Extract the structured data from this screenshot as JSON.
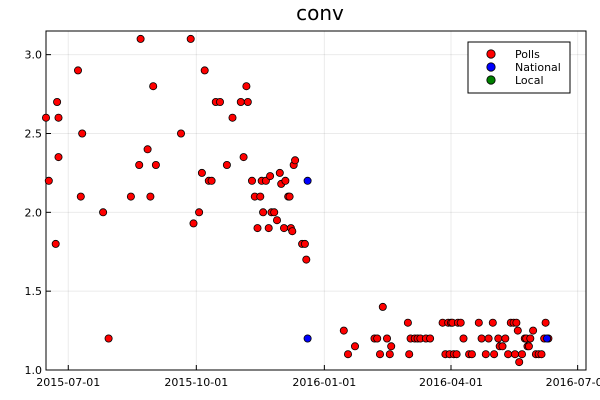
{
  "chart_data": {
    "type": "scatter",
    "title": "conv",
    "xlabel": "",
    "ylabel": "",
    "x_axis": {
      "kind": "date",
      "range": [
        "2015-06-15",
        "2016-07-07"
      ],
      "ticks": [
        "2015-07-01",
        "2015-10-01",
        "2016-01-01",
        "2016-04-01",
        "2016-07-01"
      ]
    },
    "y_axis": {
      "range": [
        1.0,
        3.15
      ],
      "ticks": [
        "1.0",
        "1.5",
        "2.0",
        "2.5",
        "3.0"
      ]
    },
    "grid": true,
    "legend": {
      "position": "top-right"
    },
    "series": [
      {
        "name": "Polls",
        "color": "#ff0000",
        "points": [
          [
            "2015-06-15",
            2.6
          ],
          [
            "2015-06-17",
            2.2
          ],
          [
            "2015-06-22",
            1.8
          ],
          [
            "2015-06-23",
            2.7
          ],
          [
            "2015-06-24",
            2.35
          ],
          [
            "2015-06-24",
            2.6
          ],
          [
            "2015-07-08",
            2.9
          ],
          [
            "2015-07-10",
            2.1
          ],
          [
            "2015-07-11",
            2.5
          ],
          [
            "2015-07-26",
            2.0
          ],
          [
            "2015-07-30",
            1.2
          ],
          [
            "2015-08-15",
            2.1
          ],
          [
            "2015-08-21",
            2.3
          ],
          [
            "2015-08-22",
            3.1
          ],
          [
            "2015-08-27",
            2.4
          ],
          [
            "2015-08-29",
            2.1
          ],
          [
            "2015-08-31",
            2.8
          ],
          [
            "2015-09-02",
            2.3
          ],
          [
            "2015-09-20",
            2.5
          ],
          [
            "2015-09-27",
            3.1
          ],
          [
            "2015-09-29",
            1.93
          ],
          [
            "2015-10-03",
            2.0
          ],
          [
            "2015-10-05",
            2.25
          ],
          [
            "2015-10-07",
            2.9
          ],
          [
            "2015-10-10",
            2.2
          ],
          [
            "2015-10-12",
            2.2
          ],
          [
            "2015-10-15",
            2.7
          ],
          [
            "2015-10-18",
            2.7
          ],
          [
            "2015-10-23",
            2.3
          ],
          [
            "2015-10-27",
            2.6
          ],
          [
            "2015-11-02",
            2.7
          ],
          [
            "2015-11-04",
            2.35
          ],
          [
            "2015-11-06",
            2.8
          ],
          [
            "2015-11-07",
            2.7
          ],
          [
            "2015-11-10",
            2.2
          ],
          [
            "2015-11-12",
            2.1
          ],
          [
            "2015-11-14",
            1.9
          ],
          [
            "2015-11-16",
            2.1
          ],
          [
            "2015-11-17",
            2.2
          ],
          [
            "2015-11-18",
            2.0
          ],
          [
            "2015-11-20",
            2.2
          ],
          [
            "2015-11-22",
            1.9
          ],
          [
            "2015-11-23",
            2.23
          ],
          [
            "2015-11-24",
            2.0
          ],
          [
            "2015-11-26",
            2.0
          ],
          [
            "2015-11-28",
            1.95
          ],
          [
            "2015-11-30",
            2.25
          ],
          [
            "2015-12-01",
            2.18
          ],
          [
            "2015-12-03",
            1.9
          ],
          [
            "2015-12-04",
            2.2
          ],
          [
            "2015-12-06",
            2.1
          ],
          [
            "2015-12-07",
            2.1
          ],
          [
            "2015-12-08",
            1.9
          ],
          [
            "2015-12-09",
            1.88
          ],
          [
            "2015-12-10",
            2.3
          ],
          [
            "2015-12-11",
            2.33
          ],
          [
            "2015-12-16",
            1.8
          ],
          [
            "2015-12-18",
            1.8
          ],
          [
            "2015-12-19",
            1.7
          ],
          [
            "2016-01-15",
            1.25
          ],
          [
            "2016-01-18",
            1.1
          ],
          [
            "2016-01-23",
            1.15
          ],
          [
            "2016-02-06",
            1.2
          ],
          [
            "2016-02-08",
            1.2
          ],
          [
            "2016-02-10",
            1.1
          ],
          [
            "2016-02-12",
            1.4
          ],
          [
            "2016-02-15",
            1.2
          ],
          [
            "2016-02-17",
            1.1
          ],
          [
            "2016-02-18",
            1.15
          ],
          [
            "2016-03-01",
            1.3
          ],
          [
            "2016-03-02",
            1.1
          ],
          [
            "2016-03-03",
            1.2
          ],
          [
            "2016-03-06",
            1.2
          ],
          [
            "2016-03-08",
            1.2
          ],
          [
            "2016-03-10",
            1.2
          ],
          [
            "2016-03-14",
            1.2
          ],
          [
            "2016-03-17",
            1.2
          ],
          [
            "2016-03-26",
            1.3
          ],
          [
            "2016-03-28",
            1.1
          ],
          [
            "2016-03-30",
            1.3
          ],
          [
            "2016-03-31",
            1.1
          ],
          [
            "2016-04-01",
            1.3
          ],
          [
            "2016-04-02",
            1.3
          ],
          [
            "2016-04-03",
            1.1
          ],
          [
            "2016-04-05",
            1.1
          ],
          [
            "2016-04-06",
            1.3
          ],
          [
            "2016-04-08",
            1.3
          ],
          [
            "2016-04-10",
            1.2
          ],
          [
            "2016-04-14",
            1.1
          ],
          [
            "2016-04-16",
            1.1
          ],
          [
            "2016-04-21",
            1.3
          ],
          [
            "2016-04-23",
            1.2
          ],
          [
            "2016-04-26",
            1.1
          ],
          [
            "2016-04-28",
            1.2
          ],
          [
            "2016-05-01",
            1.3
          ],
          [
            "2016-05-02",
            1.1
          ],
          [
            "2016-05-05",
            1.2
          ],
          [
            "2016-05-06",
            1.15
          ],
          [
            "2016-05-08",
            1.15
          ],
          [
            "2016-05-10",
            1.2
          ],
          [
            "2016-05-12",
            1.1
          ],
          [
            "2016-05-14",
            1.3
          ],
          [
            "2016-05-16",
            1.3
          ],
          [
            "2016-05-17",
            1.1
          ],
          [
            "2016-05-18",
            1.3
          ],
          [
            "2016-05-19",
            1.25
          ],
          [
            "2016-05-20",
            1.05
          ],
          [
            "2016-05-22",
            1.1
          ],
          [
            "2016-05-24",
            1.2
          ],
          [
            "2016-05-25",
            1.2
          ],
          [
            "2016-05-26",
            1.15
          ],
          [
            "2016-05-27",
            1.15
          ],
          [
            "2016-05-28",
            1.2
          ],
          [
            "2016-05-30",
            1.25
          ],
          [
            "2016-06-01",
            1.1
          ],
          [
            "2016-06-03",
            1.1
          ],
          [
            "2016-06-05",
            1.1
          ],
          [
            "2016-06-07",
            1.2
          ],
          [
            "2016-06-08",
            1.3
          ],
          [
            "2016-06-10",
            1.2
          ]
        ]
      },
      {
        "name": "National",
        "color": "#0000ff",
        "points": [
          [
            "2015-12-20",
            2.2
          ],
          [
            "2015-12-20",
            1.2
          ],
          [
            "2016-06-09",
            1.2
          ]
        ]
      },
      {
        "name": "Local",
        "color": "#008000",
        "points": []
      }
    ]
  }
}
